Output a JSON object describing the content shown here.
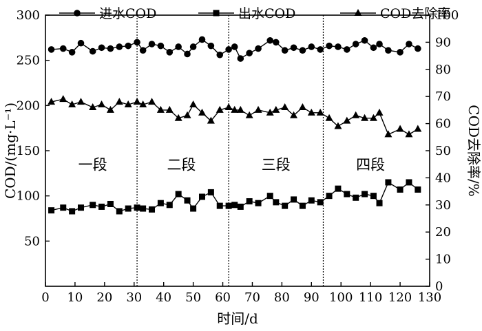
{
  "chart_data": {
    "type": "line",
    "xlabel": "时间/d",
    "ylabel_left": "COD/(mg·L⁻¹)",
    "ylabel_right": "COD去除率/%",
    "xlim": [
      0,
      130
    ],
    "ylim_left": [
      0,
      300
    ],
    "ylim_right": [
      0,
      100
    ],
    "xticks": [
      0,
      10,
      20,
      30,
      40,
      50,
      60,
      70,
      80,
      90,
      100,
      110,
      120,
      130
    ],
    "yticks_left": [
      50,
      100,
      150,
      200,
      250,
      300
    ],
    "yticks_right": [
      0,
      10,
      20,
      30,
      40,
      50,
      60,
      70,
      80,
      90,
      100
    ],
    "grid": false,
    "legend_position": "top",
    "stage_dividers": [
      31,
      62,
      94
    ],
    "stages": [
      {
        "label": "一段",
        "x": 16,
        "y": 135
      },
      {
        "label": "二段",
        "x": 46,
        "y": 135
      },
      {
        "label": "三段",
        "x": 78,
        "y": 135
      },
      {
        "label": "四段",
        "x": 110,
        "y": 135
      }
    ],
    "series": [
      {
        "name": "进水COD",
        "axis": "left",
        "marker": "circle",
        "x": [
          2,
          6,
          9,
          12,
          16,
          19,
          22,
          25,
          28,
          31,
          33,
          36,
          39,
          42,
          45,
          48,
          50,
          53,
          56,
          59,
          62,
          64,
          66,
          69,
          72,
          76,
          78,
          81,
          84,
          87,
          90,
          93,
          96,
          99,
          102,
          105,
          108,
          111,
          113,
          116,
          120,
          123,
          126
        ],
        "values": [
          262,
          263,
          259,
          269,
          260,
          264,
          263,
          265,
          266,
          270,
          261,
          268,
          266,
          259,
          265,
          257,
          265,
          273,
          266,
          256,
          262,
          265,
          252,
          258,
          263,
          272,
          270,
          261,
          264,
          261,
          265,
          262,
          266,
          265,
          262,
          268,
          272,
          264,
          268,
          261,
          259,
          268,
          263
        ]
      },
      {
        "name": "出水COD",
        "axis": "left",
        "marker": "square",
        "x": [
          2,
          6,
          9,
          12,
          16,
          19,
          22,
          25,
          28,
          31,
          33,
          36,
          39,
          42,
          45,
          48,
          50,
          53,
          56,
          59,
          62,
          64,
          66,
          69,
          72,
          76,
          78,
          81,
          84,
          87,
          90,
          93,
          96,
          99,
          102,
          105,
          108,
          111,
          113,
          116,
          120,
          123,
          126
        ],
        "values": [
          84,
          87,
          83,
          87,
          90,
          88,
          91,
          83,
          86,
          87,
          86,
          85,
          92,
          90,
          102,
          95,
          86,
          99,
          104,
          89,
          89,
          90,
          88,
          94,
          92,
          100,
          93,
          89,
          96,
          89,
          95,
          93,
          100,
          108,
          102,
          98,
          102,
          100,
          92,
          115,
          107,
          115,
          107
        ]
      },
      {
        "name": "COD去除率",
        "axis": "right",
        "marker": "triangle",
        "x": [
          2,
          6,
          9,
          12,
          16,
          19,
          22,
          25,
          28,
          31,
          33,
          36,
          39,
          42,
          45,
          48,
          50,
          53,
          56,
          59,
          62,
          64,
          66,
          69,
          72,
          76,
          78,
          81,
          84,
          87,
          90,
          93,
          96,
          99,
          102,
          105,
          108,
          111,
          113,
          116,
          120,
          123,
          126
        ],
        "values": [
          68,
          69,
          67,
          68,
          66,
          67,
          65,
          68,
          67,
          68,
          67,
          68,
          65,
          65,
          62,
          63,
          67,
          64,
          61,
          65,
          66,
          65,
          65,
          63,
          65,
          64,
          65,
          66,
          63,
          66,
          64,
          64,
          62,
          59,
          61,
          63,
          62,
          62,
          64,
          56,
          58,
          56,
          58
        ]
      }
    ]
  }
}
